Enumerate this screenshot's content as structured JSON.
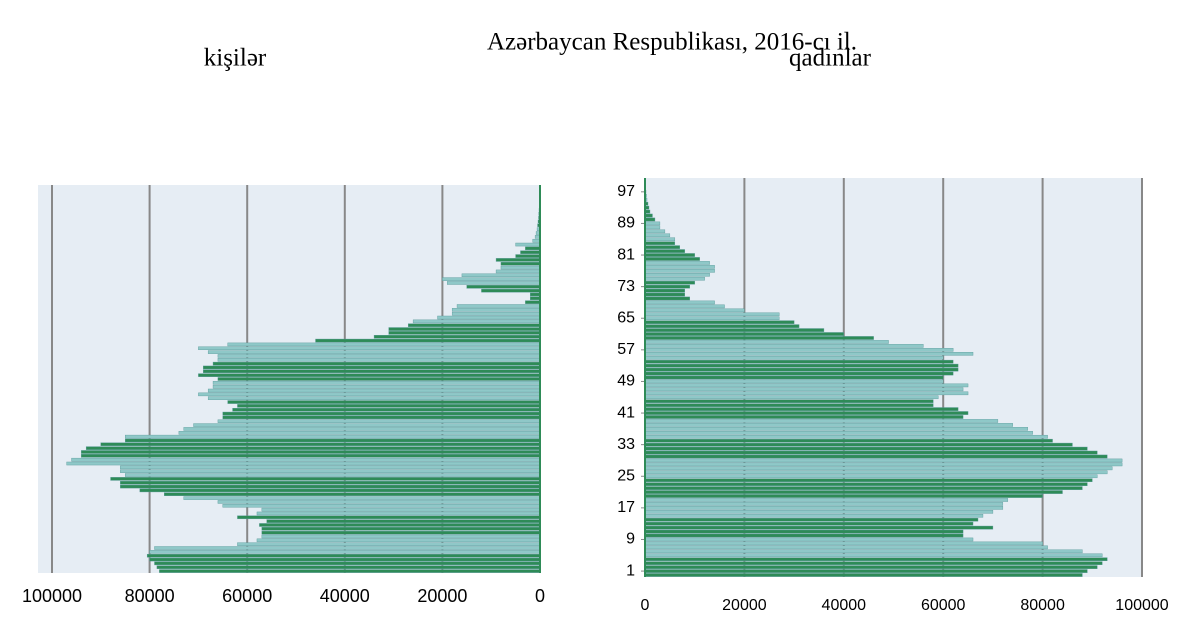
{
  "title": "Azərbaycan Respublikası, 2016-cı il.",
  "chart_data": [
    {
      "type": "bar",
      "orientation": "horizontal",
      "title": "kişilər",
      "values": [
        78000,
        78500,
        79000,
        80000,
        80500,
        80000,
        79000,
        62000,
        58000,
        57000,
        57000,
        57000,
        57500,
        56000,
        62000,
        58000,
        57000,
        65000,
        66000,
        73000,
        77000,
        82000,
        86000,
        86000,
        88000,
        85000,
        86000,
        86000,
        97000,
        96000,
        94000,
        94000,
        93000,
        90000,
        85000,
        85000,
        74000,
        73000,
        71000,
        66000,
        65000,
        65000,
        63000,
        62000,
        64000,
        68000,
        70000,
        68000,
        67000,
        67000,
        66000,
        70000,
        69000,
        69000,
        67000,
        66000,
        66000,
        68000,
        70000,
        64000,
        46000,
        34000,
        31000,
        31000,
        27000,
        26000,
        21000,
        18000,
        18000,
        17000,
        3000,
        2000,
        2000,
        12000,
        15000,
        19000,
        20000,
        16000,
        9000,
        8000,
        8000,
        9000,
        5000,
        4000,
        3000,
        5000,
        1500,
        1000,
        800,
        600,
        500,
        400,
        300,
        250,
        200,
        150,
        100,
        80,
        60,
        40,
        30
      ],
      "colors": [
        "#2e8b57",
        "#8fc8c8"
      ],
      "xlim": [
        100000,
        0
      ],
      "xticks": [
        100000,
        80000,
        60000,
        40000,
        20000,
        0
      ],
      "grid": true
    },
    {
      "type": "bar",
      "orientation": "horizontal",
      "title": "qadınlar",
      "categories": [
        null,
        "1",
        null,
        null,
        null,
        null,
        null,
        null,
        null,
        "9",
        null,
        null,
        null,
        null,
        null,
        null,
        null,
        "17",
        null,
        null,
        null,
        null,
        null,
        null,
        null,
        "25",
        null,
        null,
        null,
        null,
        null,
        null,
        null,
        "33",
        null,
        null,
        null,
        null,
        null,
        null,
        null,
        "41",
        null,
        null,
        null,
        null,
        null,
        null,
        null,
        "49",
        null,
        null,
        null,
        null,
        null,
        null,
        null,
        "57",
        null,
        null,
        null,
        null,
        null,
        null,
        null,
        "65",
        null,
        null,
        null,
        null,
        null,
        null,
        null,
        "73",
        null,
        null,
        null,
        null,
        null,
        null,
        null,
        "81",
        null,
        null,
        null,
        null,
        null,
        null,
        null,
        "89",
        null,
        null,
        null,
        null,
        null,
        null,
        null,
        "97",
        null,
        null,
        null
      ],
      "values": [
        88000,
        89000,
        91000,
        92000,
        93000,
        92000,
        88000,
        81000,
        80000,
        66000,
        64000,
        64000,
        70000,
        66000,
        67000,
        68000,
        70000,
        72000,
        72000,
        73000,
        80000,
        84000,
        88000,
        89000,
        90000,
        91000,
        93000,
        94000,
        96000,
        96000,
        93000,
        91000,
        89000,
        86000,
        82000,
        81000,
        78000,
        77000,
        74000,
        71000,
        64000,
        65000,
        63000,
        58000,
        58000,
        59000,
        65000,
        64000,
        65000,
        60000,
        60000,
        62000,
        63000,
        63000,
        62000,
        60000,
        66000,
        62000,
        56000,
        49000,
        46000,
        40000,
        36000,
        31000,
        30000,
        27000,
        27000,
        20000,
        16000,
        14000,
        9000,
        8000,
        8000,
        9000,
        10000,
        12000,
        13000,
        14000,
        14000,
        13000,
        11000,
        10000,
        8000,
        7000,
        6000,
        6000,
        5000,
        4000,
        3000,
        3000,
        2000,
        1500,
        1000,
        800,
        600,
        400,
        300,
        200,
        150,
        100,
        80
      ],
      "colors": [
        "#2e8b57",
        "#8fc8c8"
      ],
      "xlim": [
        0,
        100000
      ],
      "xticks": [
        0,
        20000,
        40000,
        60000,
        80000,
        100000
      ],
      "grid": true
    }
  ]
}
